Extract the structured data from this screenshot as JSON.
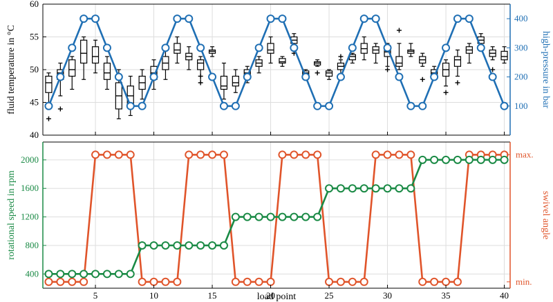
{
  "colors": {
    "blue": "#1f6fb4",
    "green": "#1a8a45",
    "orange": "#e0542a",
    "box": "#000000",
    "grid": "#dddddd"
  },
  "chart_data": [
    {
      "type": "box",
      "id": "top",
      "ylabel": "fluid temperature in °C",
      "ylim": [
        40,
        60
      ],
      "yticks": [
        40,
        45,
        50,
        55,
        60
      ],
      "xlim": [
        0.5,
        40.5
      ],
      "boxes": [
        {
          "x": 1,
          "min": 44.5,
          "q1": 46.5,
          "med": 48,
          "q3": 49,
          "max": 49.5,
          "outliers": [
            42.5
          ]
        },
        {
          "x": 2,
          "min": 46,
          "q1": 48.5,
          "med": 49.5,
          "q3": 50,
          "max": 51,
          "outliers": [
            44
          ]
        },
        {
          "x": 3,
          "min": 47,
          "q1": 49,
          "med": 50,
          "q3": 51.5,
          "max": 52,
          "outliers": []
        },
        {
          "x": 4,
          "min": 48.5,
          "q1": 51,
          "med": 52.5,
          "q3": 54.5,
          "max": 55,
          "outliers": []
        },
        {
          "x": 5,
          "min": 49.5,
          "q1": 51,
          "med": 52,
          "q3": 53.5,
          "max": 54.5,
          "outliers": []
        },
        {
          "x": 6,
          "min": 47,
          "q1": 48.5,
          "med": 49.5,
          "q3": 51,
          "max": 52,
          "outliers": []
        },
        {
          "x": 7,
          "min": 42.5,
          "q1": 44,
          "med": 46,
          "q3": 48,
          "max": 50,
          "outliers": []
        },
        {
          "x": 8,
          "min": 43,
          "q1": 44.5,
          "med": 46,
          "q3": 47.5,
          "max": 49,
          "outliers": []
        },
        {
          "x": 9,
          "min": 45.5,
          "q1": 47,
          "med": 48,
          "q3": 49,
          "max": 50,
          "outliers": []
        },
        {
          "x": 10,
          "min": 47,
          "q1": 48.5,
          "med": 49.5,
          "q3": 50.5,
          "max": 51.5,
          "outliers": []
        },
        {
          "x": 11,
          "min": 48.5,
          "q1": 50,
          "med": 51,
          "q3": 52,
          "max": 53,
          "outliers": []
        },
        {
          "x": 12,
          "min": 51,
          "q1": 52.5,
          "med": 53,
          "q3": 54,
          "max": 55,
          "outliers": []
        },
        {
          "x": 13,
          "min": 50,
          "q1": 51.5,
          "med": 52,
          "q3": 52.5,
          "max": 53.5,
          "outliers": []
        },
        {
          "x": 14,
          "min": 48,
          "q1": 50,
          "med": 51,
          "q3": 51.5,
          "max": 52,
          "outliers": [
            49,
            48
          ]
        },
        {
          "x": 15,
          "min": 52,
          "q1": 52.5,
          "med": 52.8,
          "q3": 53,
          "max": 53.5,
          "outliers": []
        },
        {
          "x": 16,
          "min": 45.5,
          "q1": 47,
          "med": 47.5,
          "q3": 49,
          "max": 51,
          "outliers": []
        },
        {
          "x": 17,
          "min": 46.5,
          "q1": 47.5,
          "med": 48,
          "q3": 49,
          "max": 50,
          "outliers": []
        },
        {
          "x": 18,
          "min": 48,
          "q1": 49,
          "med": 49.5,
          "q3": 50,
          "max": 50.5,
          "outliers": []
        },
        {
          "x": 19,
          "min": 49.5,
          "q1": 50.5,
          "med": 51,
          "q3": 51.5,
          "max": 52,
          "outliers": []
        },
        {
          "x": 20,
          "min": 51,
          "q1": 52.5,
          "med": 53,
          "q3": 54,
          "max": 55,
          "outliers": []
        },
        {
          "x": 21,
          "min": 50.5,
          "q1": 51,
          "med": 51.2,
          "q3": 51.7,
          "max": 52,
          "outliers": []
        },
        {
          "x": 22,
          "min": 53,
          "q1": 54,
          "med": 54.5,
          "q3": 55,
          "max": 55.5,
          "outliers": [
            52.5
          ]
        },
        {
          "x": 23,
          "min": 48.5,
          "q1": 49,
          "med": 49.5,
          "q3": 49.8,
          "max": 50,
          "outliers": []
        },
        {
          "x": 24,
          "min": 50.5,
          "q1": 50.7,
          "med": 51,
          "q3": 51.2,
          "max": 51.5,
          "outliers": [
            49.5
          ]
        },
        {
          "x": 25,
          "min": 48.5,
          "q1": 49,
          "med": 49.5,
          "q3": 49.8,
          "max": 50,
          "outliers": []
        },
        {
          "x": 26,
          "min": 49,
          "q1": 50,
          "med": 50.5,
          "q3": 51,
          "max": 51.5,
          "outliers": [
            52
          ]
        },
        {
          "x": 27,
          "min": 51,
          "q1": 51.5,
          "med": 52,
          "q3": 52.3,
          "max": 52.5,
          "outliers": []
        },
        {
          "x": 28,
          "min": 51.5,
          "q1": 52.5,
          "med": 53.2,
          "q3": 54,
          "max": 55,
          "outliers": []
        },
        {
          "x": 29,
          "min": 51,
          "q1": 52.5,
          "med": 53,
          "q3": 53.5,
          "max": 54,
          "outliers": []
        },
        {
          "x": 30,
          "min": 50.5,
          "q1": 52,
          "med": 52.7,
          "q3": 53,
          "max": 54,
          "outliers": [
            50
          ]
        },
        {
          "x": 31,
          "min": 50,
          "q1": 50.5,
          "med": 51,
          "q3": 52,
          "max": 54,
          "outliers": [
            56
          ]
        },
        {
          "x": 32,
          "min": 52,
          "q1": 52.5,
          "med": 52.8,
          "q3": 53,
          "max": 54,
          "outliers": []
        },
        {
          "x": 33,
          "min": 50.5,
          "q1": 51,
          "med": 51.5,
          "q3": 52,
          "max": 52.5,
          "outliers": [
            48.5
          ]
        },
        {
          "x": 34,
          "min": 48.5,
          "q1": 49,
          "med": 49.5,
          "q3": 50,
          "max": 50.5,
          "outliers": []
        },
        {
          "x": 35,
          "min": 47.5,
          "q1": 49,
          "med": 50,
          "q3": 51,
          "max": 51.5,
          "outliers": [
            46.5
          ]
        },
        {
          "x": 36,
          "min": 49,
          "q1": 50.5,
          "med": 51.5,
          "q3": 52,
          "max": 53,
          "outliers": [
            48
          ]
        },
        {
          "x": 37,
          "min": 51,
          "q1": 52.5,
          "med": 53,
          "q3": 53.5,
          "max": 54,
          "outliers": []
        },
        {
          "x": 38,
          "min": 53,
          "q1": 54,
          "med": 54.5,
          "q3": 55,
          "max": 55.5,
          "outliers": []
        },
        {
          "x": 39,
          "min": 51.5,
          "q1": 52,
          "med": 52.5,
          "q3": 53,
          "max": 53.5,
          "outliers": [
            50
          ]
        },
        {
          "x": 40,
          "min": 51,
          "q1": 51.5,
          "med": 52,
          "q3": 52.8,
          "max": 53.5,
          "outliers": []
        }
      ],
      "right_axis": {
        "label": "high-pressure in bar",
        "ylim": [
          0,
          450
        ],
        "yticks": [
          100,
          200,
          300,
          400
        ],
        "x": [
          1,
          2,
          3,
          4,
          5,
          6,
          7,
          8,
          9,
          10,
          11,
          12,
          13,
          14,
          15,
          16,
          17,
          18,
          19,
          20,
          21,
          22,
          23,
          24,
          25,
          26,
          27,
          28,
          29,
          30,
          31,
          32,
          33,
          34,
          35,
          36,
          37,
          38,
          39,
          40
        ],
        "values": [
          100,
          200,
          300,
          400,
          400,
          300,
          200,
          100,
          100,
          200,
          300,
          400,
          400,
          300,
          200,
          100,
          100,
          200,
          300,
          400,
          400,
          300,
          200,
          100,
          100,
          200,
          300,
          400,
          400,
          300,
          200,
          100,
          100,
          200,
          300,
          400,
          400,
          300,
          200,
          100
        ]
      }
    },
    {
      "type": "line",
      "id": "bottom",
      "xlabel": "load point",
      "xlim": [
        0.5,
        40.5
      ],
      "xticks": [
        5,
        10,
        15,
        20,
        25,
        30,
        35,
        40
      ],
      "ylabel": "rotational speed in rpm",
      "ylim": [
        200,
        2250
      ],
      "yticks": [
        400,
        800,
        1200,
        1600,
        2000
      ],
      "x": [
        1,
        2,
        3,
        4,
        5,
        6,
        7,
        8,
        9,
        10,
        11,
        12,
        13,
        14,
        15,
        16,
        17,
        18,
        19,
        20,
        21,
        22,
        23,
        24,
        25,
        26,
        27,
        28,
        29,
        30,
        31,
        32,
        33,
        34,
        35,
        36,
        37,
        38,
        39,
        40
      ],
      "values": [
        400,
        400,
        400,
        400,
        400,
        400,
        400,
        400,
        800,
        800,
        800,
        800,
        800,
        800,
        800,
        800,
        1200,
        1200,
        1200,
        1200,
        1200,
        1200,
        1200,
        1200,
        1600,
        1600,
        1600,
        1600,
        1600,
        1600,
        1600,
        1600,
        2000,
        2000,
        2000,
        2000,
        2000,
        2000,
        2000,
        2000
      ],
      "right_axis": {
        "label": "swivel angle",
        "ylim": [
          -0.05,
          1.1
        ],
        "ytick_labels": [
          "min.",
          "max."
        ],
        "ytick_values": [
          0,
          1
        ],
        "x": [
          1,
          2,
          3,
          4,
          5,
          6,
          7,
          8,
          9,
          10,
          11,
          12,
          13,
          14,
          15,
          16,
          17,
          18,
          19,
          20,
          21,
          22,
          23,
          24,
          25,
          26,
          27,
          28,
          29,
          30,
          31,
          32,
          33,
          34,
          35,
          36,
          37,
          38,
          39,
          40
        ],
        "values": [
          0,
          0,
          0,
          0,
          1,
          1,
          1,
          1,
          0,
          0,
          0,
          0,
          1,
          1,
          1,
          1,
          0,
          0,
          0,
          0,
          1,
          1,
          1,
          1,
          0,
          0,
          0,
          0,
          1,
          1,
          1,
          1,
          0,
          0,
          0,
          0,
          1,
          1,
          1,
          1
        ]
      }
    }
  ]
}
